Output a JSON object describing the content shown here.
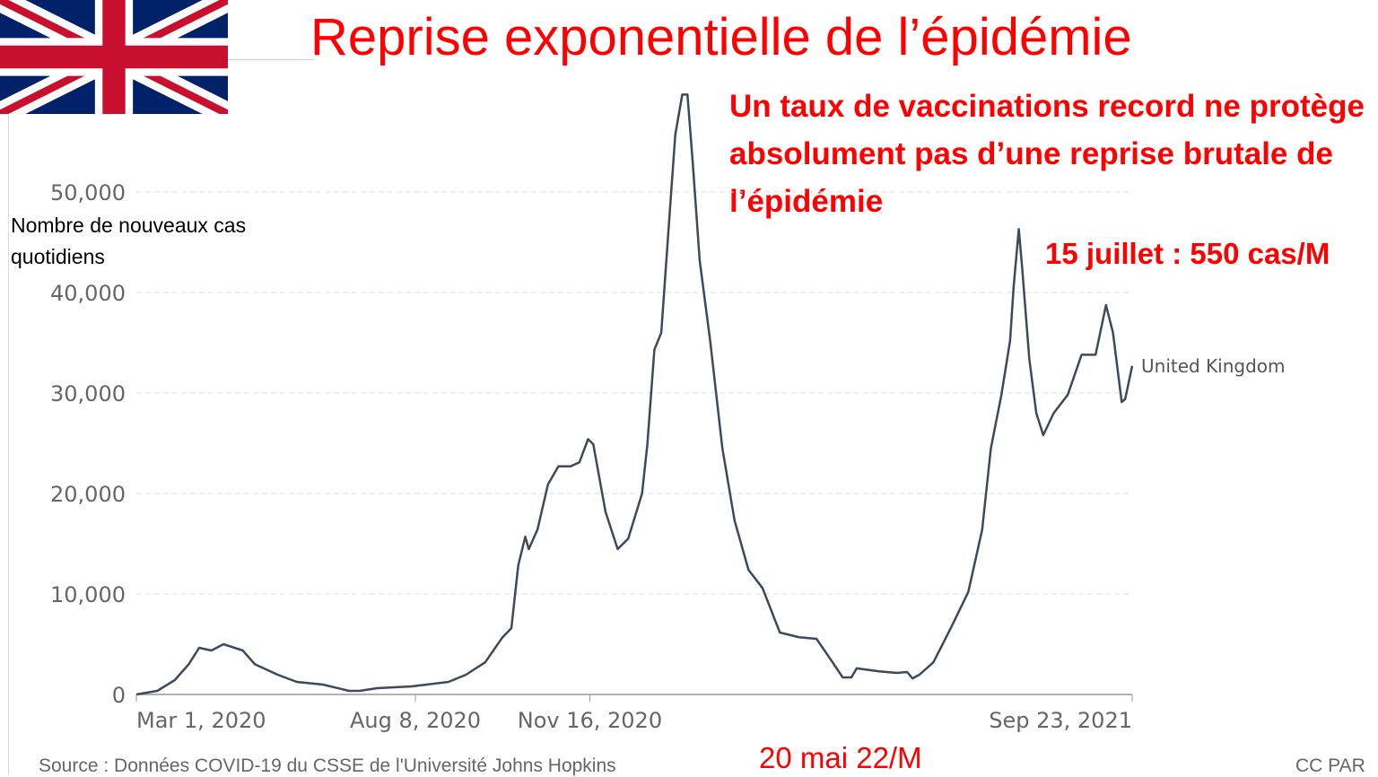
{
  "slide": {
    "title": "Reprise exponentielle de l’épidémie",
    "headline": "Un taux de vaccinations record ne protège absolument pas d’une reprise brutale de l’épidémie",
    "note_peak": "15 juillet : 550 cas/M",
    "note_low": "20 mai 22/M",
    "y_axis_label": "Nombre de nouveaux cas quotidiens",
    "source": "Source : Données COVID-19 du CSSE de l'Université Johns Hopkins",
    "license": "CC PAR",
    "colors": {
      "accent": "#ff0000",
      "line": "#3d4a5c",
      "flag_blue": "#012169",
      "flag_red": "#c8102e"
    }
  },
  "chart_data": {
    "type": "line",
    "title": "",
    "xlabel": "",
    "ylabel": "Nombre de nouveaux cas quotidiens",
    "x_unit": "days since Mar 1, 2020",
    "xlim": [
      0,
      571
    ],
    "ylim": [
      0,
      60000
    ],
    "grid": true,
    "x_ticks": [
      {
        "day": 0,
        "label": "Mar 1, 2020"
      },
      {
        "day": 160,
        "label": "Aug 8, 2020"
      },
      {
        "day": 260,
        "label": "Nov 16, 2020"
      },
      {
        "day": 571,
        "label": "Sep 23, 2021"
      }
    ],
    "y_ticks": [
      {
        "value": 0,
        "label": "0"
      },
      {
        "value": 10000,
        "label": "10,000"
      },
      {
        "value": 20000,
        "label": "20,000"
      },
      {
        "value": 30000,
        "label": "30,000"
      },
      {
        "value": 40000,
        "label": "40,000"
      },
      {
        "value": 50000,
        "label": "50,000"
      }
    ],
    "series": [
      {
        "name": "United Kingdom",
        "x": [
          0,
          12,
          22,
          30,
          36,
          43,
          50,
          61,
          68,
          81,
          92,
          107,
          122,
          128,
          138,
          158,
          179,
          189,
          200,
          210,
          215,
          219,
          223,
          225,
          230,
          236,
          242,
          249,
          254,
          259,
          262,
          269,
          276,
          282,
          290,
          293,
          297,
          301,
          305,
          309,
          313,
          316,
          319,
          323,
          329,
          336,
          343,
          351,
          359,
          369,
          380,
          390,
          400,
          405,
          410,
          413,
          426,
          436,
          442,
          445,
          449,
          457,
          467,
          477,
          485,
          490,
          496,
          501,
          503,
          506,
          508,
          512,
          516,
          520,
          526,
          534,
          542,
          547,
          550,
          556,
          560,
          565,
          567,
          571
        ],
        "y": [
          0,
          360,
          1430,
          3000,
          4640,
          4375,
          5000,
          4375,
          3000,
          1960,
          1250,
          980,
          360,
          360,
          625,
          800,
          1250,
          1960,
          3200,
          5700,
          6600,
          12860,
          15700,
          14460,
          16400,
          20900,
          22700,
          22700,
          23100,
          25400,
          24900,
          18200,
          14460,
          15500,
          20000,
          24900,
          34300,
          36000,
          45900,
          55700,
          59700,
          59700,
          53000,
          43200,
          35200,
          24500,
          17300,
          12400,
          10600,
          6160,
          5700,
          5540,
          3000,
          1700,
          1700,
          2600,
          2300,
          2140,
          2230,
          1600,
          1960,
          3200,
          6600,
          10200,
          16400,
          24500,
          29800,
          35200,
          40500,
          46300,
          42300,
          33400,
          28000,
          25800,
          28000,
          29800,
          33800,
          33800,
          33800,
          38750,
          36000,
          29100,
          29400,
          32700
        ]
      }
    ]
  }
}
